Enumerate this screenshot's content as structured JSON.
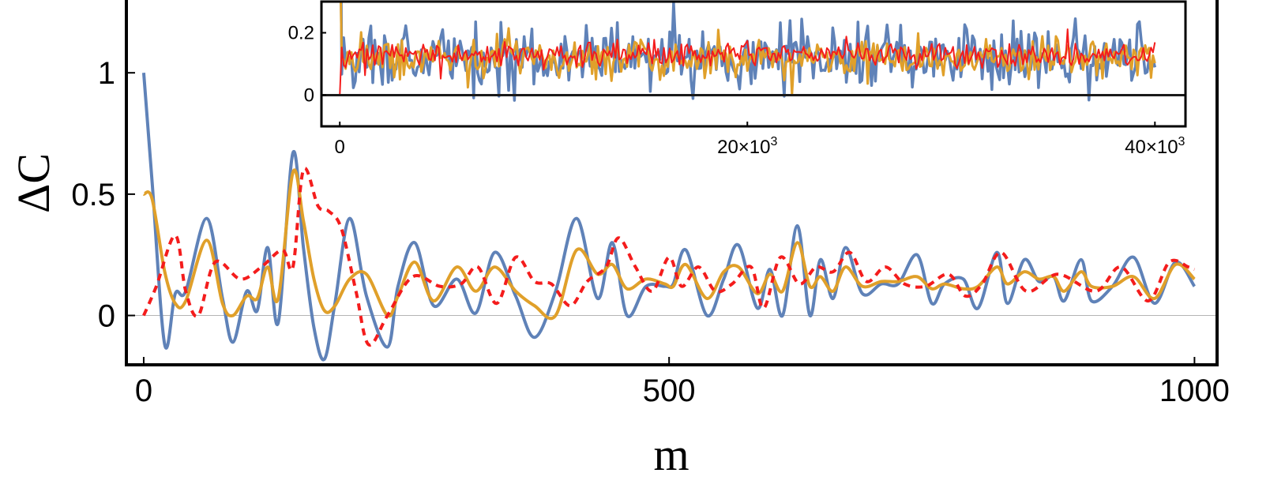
{
  "chart_data": [
    {
      "type": "line",
      "xlabel": "m",
      "ylabel": "ΔC",
      "xlim": [
        -15,
        1020
      ],
      "ylim": [
        -0.2,
        1.3
      ],
      "x_ticks": [
        0,
        500,
        1000
      ],
      "x_tick_labels": [
        "0",
        "500",
        "1000"
      ],
      "y_ticks": [
        0,
        0.5,
        1
      ],
      "y_tick_labels": [
        "0",
        "0.5",
        "1"
      ],
      "zero_line": true,
      "grid": false,
      "legend": "none",
      "series": [
        {
          "color": "#5f82b8",
          "style": "solid",
          "x": [
            0,
            8,
            20,
            30,
            40,
            60,
            75,
            85,
            98,
            108,
            118,
            128,
            142,
            152,
            162,
            172,
            182,
            196,
            212,
            232,
            242,
            258,
            276,
            298,
            316,
            334,
            354,
            372,
            392,
            412,
            432,
            446,
            460,
            478,
            496,
            504,
            516,
            536,
            552,
            566,
            584,
            596,
            608,
            622,
            634,
            644,
            656,
            668,
            684,
            702,
            718,
            736,
            750,
            762,
            780,
            794,
            812,
            822,
            838,
            852,
            866,
            876,
            892,
            902,
            922,
            942,
            962,
            982,
            1000
          ],
          "y": [
            1.0,
            0.55,
            -0.12,
            0.09,
            0.1,
            0.4,
            0.07,
            -0.11,
            0.1,
            0.02,
            0.28,
            -0.03,
            0.67,
            0.28,
            -0.05,
            -0.18,
            0.05,
            0.4,
            0.08,
            -0.13,
            0.12,
            0.3,
            0.04,
            0.15,
            0.01,
            0.26,
            0.08,
            -0.09,
            0.1,
            0.4,
            0.07,
            0.3,
            0.0,
            0.12,
            0.12,
            0.13,
            0.27,
            0.0,
            0.15,
            0.29,
            0.03,
            0.19,
            0.0,
            0.37,
            0.0,
            0.23,
            0.07,
            0.28,
            0.09,
            0.13,
            0.13,
            0.25,
            0.05,
            0.13,
            0.15,
            0.03,
            0.26,
            0.05,
            0.23,
            0.14,
            0.16,
            0.06,
            0.23,
            0.06,
            0.12,
            0.24,
            0.05,
            0.22,
            0.12
          ]
        },
        {
          "color": "#e0a02a",
          "style": "solid",
          "x": [
            0,
            8,
            20,
            30,
            40,
            60,
            75,
            85,
            98,
            108,
            118,
            128,
            142,
            152,
            162,
            172,
            182,
            196,
            212,
            232,
            242,
            258,
            276,
            298,
            316,
            334,
            354,
            372,
            392,
            412,
            432,
            446,
            460,
            478,
            496,
            504,
            516,
            536,
            552,
            566,
            584,
            596,
            608,
            622,
            634,
            644,
            656,
            668,
            684,
            702,
            718,
            736,
            750,
            762,
            780,
            794,
            812,
            822,
            838,
            852,
            866,
            876,
            892,
            902,
            922,
            942,
            962,
            982,
            1000
          ],
          "y": [
            0.5,
            0.48,
            0.18,
            0.05,
            0.06,
            0.31,
            0.05,
            0.0,
            0.08,
            0.07,
            0.2,
            0.07,
            0.59,
            0.39,
            0.15,
            0.02,
            0.04,
            0.15,
            0.17,
            0.0,
            0.08,
            0.22,
            0.06,
            0.2,
            0.1,
            0.2,
            0.1,
            0.04,
            0.0,
            0.27,
            0.17,
            0.21,
            0.11,
            0.15,
            0.13,
            0.12,
            0.21,
            0.07,
            0.18,
            0.2,
            0.09,
            0.17,
            0.1,
            0.3,
            0.12,
            0.16,
            0.1,
            0.2,
            0.12,
            0.14,
            0.14,
            0.16,
            0.11,
            0.13,
            0.11,
            0.12,
            0.2,
            0.13,
            0.18,
            0.15,
            0.16,
            0.1,
            0.18,
            0.12,
            0.12,
            0.16,
            0.07,
            0.21,
            0.15
          ]
        },
        {
          "color": "#f41c1c",
          "style": "dashed",
          "x": [
            0,
            12,
            30,
            40,
            52,
            68,
            92,
            112,
            132,
            142,
            152,
            166,
            176,
            188,
            202,
            214,
            232,
            256,
            282,
            302,
            318,
            336,
            354,
            372,
            388,
            406,
            422,
            440,
            452,
            468,
            484,
            500,
            512,
            528,
            544,
            560,
            578,
            590,
            606,
            624,
            640,
            656,
            672,
            688,
            706,
            724,
            744,
            766,
            782,
            798,
            816,
            840,
            870,
            906,
            930,
            956,
            976,
            994,
            1000
          ],
          "y": [
            0.0,
            0.12,
            0.33,
            0.1,
            0.0,
            0.22,
            0.15,
            0.2,
            0.27,
            0.2,
            0.6,
            0.45,
            0.43,
            0.36,
            0.1,
            -0.12,
            0.0,
            0.16,
            0.12,
            0.13,
            0.2,
            0.05,
            0.24,
            0.14,
            0.13,
            0.04,
            0.14,
            0.2,
            0.32,
            0.2,
            0.1,
            0.24,
            0.12,
            0.2,
            0.1,
            0.13,
            0.2,
            0.03,
            0.24,
            0.13,
            0.2,
            0.18,
            0.26,
            0.14,
            0.2,
            0.13,
            0.12,
            0.17,
            0.08,
            0.13,
            0.26,
            0.1,
            0.17,
            0.1,
            0.2,
            0.06,
            0.22,
            0.2,
            0.19
          ]
        }
      ]
    },
    {
      "type": "line",
      "inset": true,
      "xlim": [
        -900,
        41500
      ],
      "ylim": [
        -0.1,
        0.3
      ],
      "x_ticks": [
        0,
        20000,
        40000
      ],
      "x_tick_labels": [
        "0",
        "20×10",
        "40×10"
      ],
      "x_tick_exponent": "3",
      "y_ticks": [
        0,
        0.2
      ],
      "y_tick_labels": [
        "0",
        "0.2"
      ],
      "zero_line": true,
      "legend": "none",
      "series": [
        {
          "color": "#5f82b8",
          "style": "solid",
          "x_range": [
            0,
            40000
          ],
          "mean": 0.12,
          "spread": 0.1,
          "start": 1.0
        },
        {
          "color": "#e0a02a",
          "style": "solid",
          "x_range": [
            0,
            40000
          ],
          "mean": 0.12,
          "spread": 0.055,
          "start": 0.5
        },
        {
          "color": "#f41c1c",
          "style": "solid",
          "x_range": [
            0,
            40000
          ],
          "mean": 0.13,
          "spread": 0.035,
          "start": 0.0
        }
      ]
    }
  ]
}
